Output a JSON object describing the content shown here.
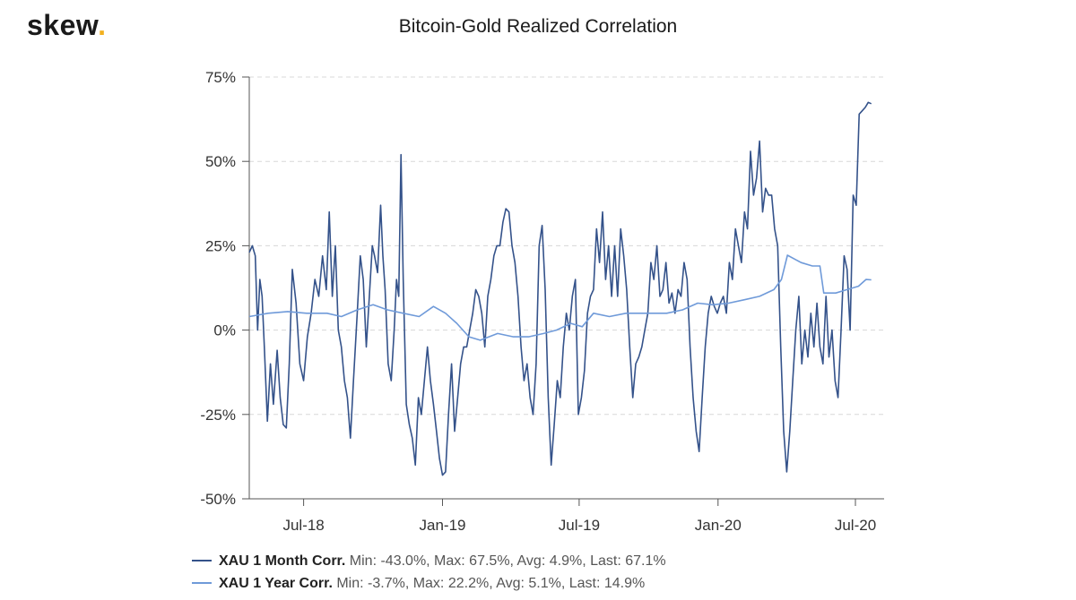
{
  "brand": {
    "name": "skew",
    "dot": "."
  },
  "colors": {
    "month": "#34528a",
    "year": "#6f9ad9",
    "grid": "#d8d8d8",
    "axis": "#555555",
    "brand_dot": "#f2b01e"
  },
  "legend": [
    {
      "name": "XAU 1 Month Corr.",
      "stats": "Min: -43.0%, Max: 67.5%, Avg: 4.9%, Last: 67.1%"
    },
    {
      "name": "XAU 1 Year Corr.",
      "stats": "Min: -3.7%, Max: 22.2%, Avg: 5.1%, Last: 14.9%"
    }
  ],
  "chart_data": {
    "type": "line",
    "title": "Bitcoin-Gold Realized Correlation",
    "xlabel": "",
    "ylabel": "",
    "ylim": [
      -50,
      75
    ],
    "yticks": [
      -50,
      -25,
      0,
      25,
      50,
      75
    ],
    "ytick_labels": [
      "-50%",
      "-25%",
      "0%",
      "25%",
      "50%",
      "75%"
    ],
    "xlim": [
      "2018-04-20",
      "2020-08-08"
    ],
    "xticks": [
      "2018-07-01",
      "2019-01-01",
      "2019-07-01",
      "2020-01-01",
      "2020-07-01"
    ],
    "xtick_labels": [
      "Jul-18",
      "Jan-19",
      "Jul-19",
      "Jan-20",
      "Jul-20"
    ],
    "grid": "horizontal dashed",
    "legend_position": "bottom-left",
    "series": [
      {
        "name": "XAU 1 Month Corr.",
        "color": "#34528a",
        "points": [
          [
            "2018-04-20",
            23
          ],
          [
            "2018-04-24",
            25
          ],
          [
            "2018-04-28",
            22
          ],
          [
            "2018-05-01",
            0
          ],
          [
            "2018-05-04",
            15
          ],
          [
            "2018-05-07",
            10
          ],
          [
            "2018-05-10",
            -5
          ],
          [
            "2018-05-14",
            -27
          ],
          [
            "2018-05-18",
            -10
          ],
          [
            "2018-05-22",
            -22
          ],
          [
            "2018-05-27",
            -6
          ],
          [
            "2018-05-31",
            -20
          ],
          [
            "2018-06-04",
            -28
          ],
          [
            "2018-06-08",
            -29
          ],
          [
            "2018-06-12",
            -10
          ],
          [
            "2018-06-16",
            18
          ],
          [
            "2018-06-21",
            8
          ],
          [
            "2018-06-26",
            -10
          ],
          [
            "2018-07-01",
            -15
          ],
          [
            "2018-07-06",
            -2
          ],
          [
            "2018-07-11",
            5
          ],
          [
            "2018-07-16",
            15
          ],
          [
            "2018-07-21",
            10
          ],
          [
            "2018-07-26",
            22
          ],
          [
            "2018-07-31",
            12
          ],
          [
            "2018-08-04",
            35
          ],
          [
            "2018-08-08",
            10
          ],
          [
            "2018-08-12",
            25
          ],
          [
            "2018-08-16",
            0
          ],
          [
            "2018-08-20",
            -5
          ],
          [
            "2018-08-24",
            -15
          ],
          [
            "2018-08-28",
            -20
          ],
          [
            "2018-09-01",
            -32
          ],
          [
            "2018-09-05",
            -15
          ],
          [
            "2018-09-10",
            5
          ],
          [
            "2018-09-14",
            22
          ],
          [
            "2018-09-18",
            15
          ],
          [
            "2018-09-22",
            -5
          ],
          [
            "2018-09-26",
            10
          ],
          [
            "2018-09-30",
            25
          ],
          [
            "2018-10-03",
            22
          ],
          [
            "2018-10-07",
            17
          ],
          [
            "2018-10-11",
            37
          ],
          [
            "2018-10-14",
            22
          ],
          [
            "2018-10-17",
            12
          ],
          [
            "2018-10-21",
            -10
          ],
          [
            "2018-10-25",
            -15
          ],
          [
            "2018-10-29",
            0
          ],
          [
            "2018-11-01",
            15
          ],
          [
            "2018-11-04",
            10
          ],
          [
            "2018-11-07",
            52
          ],
          [
            "2018-11-10",
            15
          ],
          [
            "2018-11-14",
            -22
          ],
          [
            "2018-11-18",
            -28
          ],
          [
            "2018-11-22",
            -32
          ],
          [
            "2018-11-26",
            -40
          ],
          [
            "2018-11-30",
            -20
          ],
          [
            "2018-12-04",
            -25
          ],
          [
            "2018-12-08",
            -15
          ],
          [
            "2018-12-12",
            -5
          ],
          [
            "2018-12-16",
            -15
          ],
          [
            "2018-12-20",
            -22
          ],
          [
            "2018-12-24",
            -30
          ],
          [
            "2018-12-28",
            -38
          ],
          [
            "2019-01-01",
            -43
          ],
          [
            "2019-01-05",
            -42
          ],
          [
            "2019-01-09",
            -25
          ],
          [
            "2019-01-13",
            -10
          ],
          [
            "2019-01-17",
            -30
          ],
          [
            "2019-01-21",
            -20
          ],
          [
            "2019-01-25",
            -10
          ],
          [
            "2019-01-29",
            -5
          ],
          [
            "2019-02-02",
            -5
          ],
          [
            "2019-02-06",
            0
          ],
          [
            "2019-02-10",
            5
          ],
          [
            "2019-02-14",
            12
          ],
          [
            "2019-02-18",
            10
          ],
          [
            "2019-02-22",
            5
          ],
          [
            "2019-02-26",
            -5
          ],
          [
            "2019-03-02",
            10
          ],
          [
            "2019-03-06",
            15
          ],
          [
            "2019-03-10",
            22
          ],
          [
            "2019-03-14",
            25
          ],
          [
            "2019-03-18",
            25
          ],
          [
            "2019-03-22",
            32
          ],
          [
            "2019-03-26",
            36
          ],
          [
            "2019-03-30",
            35
          ],
          [
            "2019-04-03",
            25
          ],
          [
            "2019-04-07",
            20
          ],
          [
            "2019-04-11",
            10
          ],
          [
            "2019-04-15",
            -5
          ],
          [
            "2019-04-19",
            -15
          ],
          [
            "2019-04-23",
            -10
          ],
          [
            "2019-04-27",
            -20
          ],
          [
            "2019-05-01",
            -25
          ],
          [
            "2019-05-05",
            -10
          ],
          [
            "2019-05-09",
            25
          ],
          [
            "2019-05-13",
            31
          ],
          [
            "2019-05-17",
            12
          ],
          [
            "2019-05-21",
            -20
          ],
          [
            "2019-05-25",
            -40
          ],
          [
            "2019-05-29",
            -28
          ],
          [
            "2019-06-02",
            -15
          ],
          [
            "2019-06-06",
            -20
          ],
          [
            "2019-06-10",
            -5
          ],
          [
            "2019-06-14",
            5
          ],
          [
            "2019-06-18",
            0
          ],
          [
            "2019-06-22",
            10
          ],
          [
            "2019-06-26",
            15
          ],
          [
            "2019-06-30",
            -25
          ],
          [
            "2019-07-04",
            -20
          ],
          [
            "2019-07-08",
            -12
          ],
          [
            "2019-07-12",
            5
          ],
          [
            "2019-07-16",
            10
          ],
          [
            "2019-07-20",
            12
          ],
          [
            "2019-07-24",
            30
          ],
          [
            "2019-07-28",
            20
          ],
          [
            "2019-08-01",
            35
          ],
          [
            "2019-08-05",
            15
          ],
          [
            "2019-08-09",
            25
          ],
          [
            "2019-08-13",
            10
          ],
          [
            "2019-08-17",
            25
          ],
          [
            "2019-08-21",
            10
          ],
          [
            "2019-08-25",
            30
          ],
          [
            "2019-08-29",
            22
          ],
          [
            "2019-09-02",
            12
          ],
          [
            "2019-09-06",
            -5
          ],
          [
            "2019-09-10",
            -20
          ],
          [
            "2019-09-14",
            -10
          ],
          [
            "2019-09-18",
            -8
          ],
          [
            "2019-09-22",
            -5
          ],
          [
            "2019-09-26",
            0
          ],
          [
            "2019-09-30",
            5
          ],
          [
            "2019-10-04",
            20
          ],
          [
            "2019-10-08",
            15
          ],
          [
            "2019-10-12",
            25
          ],
          [
            "2019-10-16",
            10
          ],
          [
            "2019-10-20",
            12
          ],
          [
            "2019-10-24",
            20
          ],
          [
            "2019-10-28",
            8
          ],
          [
            "2019-11-01",
            11
          ],
          [
            "2019-11-05",
            5
          ],
          [
            "2019-11-09",
            12
          ],
          [
            "2019-11-13",
            10
          ],
          [
            "2019-11-17",
            20
          ],
          [
            "2019-11-21",
            15
          ],
          [
            "2019-11-25",
            -5
          ],
          [
            "2019-11-29",
            -20
          ],
          [
            "2019-12-03",
            -30
          ],
          [
            "2019-12-07",
            -36
          ],
          [
            "2019-12-11",
            -20
          ],
          [
            "2019-12-15",
            -5
          ],
          [
            "2019-12-19",
            5
          ],
          [
            "2019-12-23",
            10
          ],
          [
            "2019-12-27",
            7
          ],
          [
            "2019-12-31",
            5
          ],
          [
            "2020-01-04",
            8
          ],
          [
            "2020-01-08",
            10
          ],
          [
            "2020-01-12",
            5
          ],
          [
            "2020-01-16",
            20
          ],
          [
            "2020-01-20",
            15
          ],
          [
            "2020-01-24",
            30
          ],
          [
            "2020-01-28",
            25
          ],
          [
            "2020-02-01",
            20
          ],
          [
            "2020-02-05",
            35
          ],
          [
            "2020-02-09",
            30
          ],
          [
            "2020-02-13",
            53
          ],
          [
            "2020-02-17",
            40
          ],
          [
            "2020-02-21",
            45
          ],
          [
            "2020-02-25",
            56
          ],
          [
            "2020-02-29",
            35
          ],
          [
            "2020-03-04",
            42
          ],
          [
            "2020-03-08",
            40
          ],
          [
            "2020-03-12",
            40
          ],
          [
            "2020-03-16",
            30
          ],
          [
            "2020-03-20",
            25
          ],
          [
            "2020-03-24",
            -5
          ],
          [
            "2020-03-28",
            -30
          ],
          [
            "2020-04-01",
            -42
          ],
          [
            "2020-04-05",
            -30
          ],
          [
            "2020-04-09",
            -15
          ],
          [
            "2020-04-13",
            0
          ],
          [
            "2020-04-17",
            10
          ],
          [
            "2020-04-21",
            -10
          ],
          [
            "2020-04-25",
            0
          ],
          [
            "2020-04-29",
            -8
          ],
          [
            "2020-05-03",
            5
          ],
          [
            "2020-05-07",
            -5
          ],
          [
            "2020-05-11",
            8
          ],
          [
            "2020-05-15",
            -5
          ],
          [
            "2020-05-19",
            -10
          ],
          [
            "2020-05-23",
            10
          ],
          [
            "2020-05-27",
            -8
          ],
          [
            "2020-05-31",
            0
          ],
          [
            "2020-06-04",
            -15
          ],
          [
            "2020-06-08",
            -20
          ],
          [
            "2020-06-12",
            0
          ],
          [
            "2020-06-16",
            22
          ],
          [
            "2020-06-20",
            18
          ],
          [
            "2020-06-24",
            0
          ],
          [
            "2020-06-28",
            40
          ],
          [
            "2020-07-02",
            37
          ],
          [
            "2020-07-06",
            64
          ],
          [
            "2020-07-10",
            65
          ],
          [
            "2020-07-14",
            66
          ],
          [
            "2020-07-18",
            67.5
          ],
          [
            "2020-07-22",
            67.1
          ]
        ]
      },
      {
        "name": "XAU 1 Year Corr.",
        "color": "#6f9ad9",
        "points": [
          [
            "2018-04-20",
            4
          ],
          [
            "2018-05-15",
            5
          ],
          [
            "2018-06-10",
            5.5
          ],
          [
            "2018-07-05",
            5
          ],
          [
            "2018-08-01",
            5
          ],
          [
            "2018-08-20",
            4
          ],
          [
            "2018-09-10",
            6
          ],
          [
            "2018-10-01",
            7.5
          ],
          [
            "2018-10-20",
            6
          ],
          [
            "2018-11-10",
            5
          ],
          [
            "2018-12-01",
            4
          ],
          [
            "2018-12-20",
            7
          ],
          [
            "2019-01-05",
            5
          ],
          [
            "2019-01-20",
            2
          ],
          [
            "2019-02-05",
            -2
          ],
          [
            "2019-02-20",
            -3
          ],
          [
            "2019-03-15",
            -1
          ],
          [
            "2019-04-05",
            -2
          ],
          [
            "2019-04-25",
            -2
          ],
          [
            "2019-05-15",
            -1
          ],
          [
            "2019-06-01",
            0
          ],
          [
            "2019-06-20",
            2
          ],
          [
            "2019-07-05",
            1
          ],
          [
            "2019-07-20",
            5
          ],
          [
            "2019-08-10",
            4
          ],
          [
            "2019-09-01",
            5
          ],
          [
            "2019-10-01",
            5
          ],
          [
            "2019-10-25",
            5
          ],
          [
            "2019-11-15",
            6
          ],
          [
            "2019-12-05",
            8
          ],
          [
            "2019-12-25",
            7.5
          ],
          [
            "2020-01-15",
            8
          ],
          [
            "2020-02-05",
            9
          ],
          [
            "2020-02-25",
            10
          ],
          [
            "2020-03-15",
            12
          ],
          [
            "2020-03-25",
            15
          ],
          [
            "2020-04-02",
            22.2
          ],
          [
            "2020-04-20",
            20
          ],
          [
            "2020-05-05",
            19
          ],
          [
            "2020-05-15",
            19
          ],
          [
            "2020-05-20",
            11
          ],
          [
            "2020-06-05",
            11
          ],
          [
            "2020-06-20",
            12
          ],
          [
            "2020-07-05",
            13
          ],
          [
            "2020-07-15",
            15
          ],
          [
            "2020-07-22",
            14.9
          ]
        ]
      }
    ]
  }
}
